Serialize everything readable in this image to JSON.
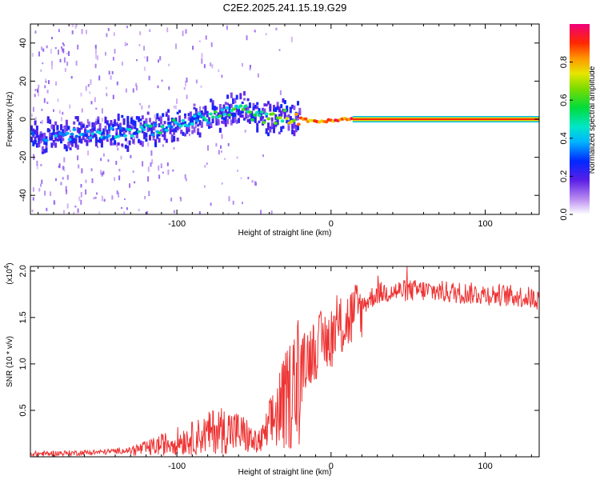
{
  "chart_data": [
    {
      "type": "heatmap",
      "title": "C2E2.2025.241.15.19.G29",
      "xlabel": "Height of straight line (km)",
      "ylabel": "Frequency (Hz)",
      "xlim": [
        -195,
        135
      ],
      "ylim": [
        -50,
        50
      ],
      "x_ticks": [
        -100,
        0,
        100
      ],
      "y_ticks": [
        40,
        20,
        0,
        -20,
        -40
      ],
      "y_tick_labels": [
        "40",
        "20",
        "0",
        "-20",
        "-40"
      ],
      "colorbar": {
        "label": "Normalized spectral amplitude",
        "range": [
          0,
          1
        ],
        "ticks": [
          0.0,
          0.2,
          0.4,
          0.6,
          0.8
        ],
        "tick_labels": [
          "0.0",
          "0.2",
          "0.4",
          "0.6",
          "0.8"
        ]
      },
      "ridge": {
        "x": [
          -195,
          -170,
          -140,
          -120,
          -100,
          -85,
          -70,
          -60,
          -50,
          -40,
          -30,
          -25,
          -20,
          -10,
          0,
          10,
          20,
          40,
          60,
          80,
          100,
          120,
          135
        ],
        "frequency_hz": [
          -9,
          -8,
          -7,
          -6,
          -3,
          0,
          3,
          6,
          2,
          0,
          2,
          0,
          0,
          -1,
          -1,
          0,
          0,
          0,
          0,
          0,
          0,
          0,
          0
        ],
        "amplitude": [
          0.25,
          0.3,
          0.35,
          0.4,
          0.45,
          0.45,
          0.5,
          0.5,
          0.5,
          0.55,
          0.6,
          0.7,
          0.8,
          0.85,
          0.85,
          0.9,
          0.95,
          0.95,
          0.95,
          0.95,
          0.95,
          0.95,
          0.95
        ]
      }
    },
    {
      "type": "line",
      "xlabel": "Height of straight line (km)",
      "ylabel": "SNR (10 * v/v)",
      "y_multiplier_label": "(x10",
      "y_multiplier_exp": "4",
      "y_multiplier_close": ")",
      "xlim": [
        -195,
        135
      ],
      "ylim": [
        0,
        20500
      ],
      "x_ticks": [
        -100,
        0,
        100
      ],
      "y_ticks": [
        5000,
        10000,
        15000,
        20000
      ],
      "y_tick_labels": [
        "0.5",
        "1.0",
        "1.5",
        "2.0"
      ],
      "color": "#ee3333",
      "x": [
        -195,
        -170,
        -150,
        -130,
        -120,
        -110,
        -100,
        -90,
        -80,
        -75,
        -70,
        -65,
        -60,
        -55,
        -50,
        -45,
        -40,
        -35,
        -30,
        -25,
        -20,
        -15,
        -10,
        -5,
        0,
        5,
        10,
        15,
        20,
        25,
        30,
        40,
        50,
        60,
        70,
        80,
        90,
        100,
        110,
        120,
        130,
        135
      ],
      "y": [
        300,
        400,
        500,
        700,
        900,
        1300,
        1700,
        2000,
        2500,
        2900,
        2900,
        2800,
        2600,
        2300,
        1500,
        1700,
        3200,
        4800,
        5800,
        7200,
        9000,
        10800,
        11800,
        12400,
        13000,
        13800,
        14500,
        15300,
        16200,
        17000,
        17600,
        17800,
        17900,
        17900,
        17800,
        17700,
        17600,
        17500,
        17400,
        17300,
        17100,
        17000
      ]
    }
  ]
}
